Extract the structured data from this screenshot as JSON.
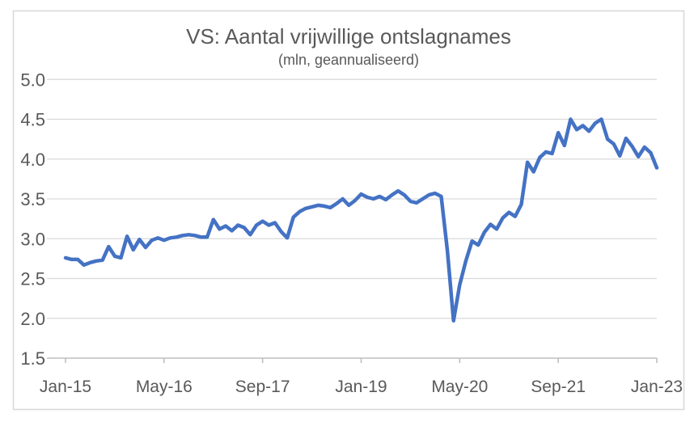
{
  "chart_data": {
    "type": "line",
    "title": "VS: Aantal vrijwillige ontslagnames",
    "subtitle": "(mln, geannualiseerd)",
    "x_unit": "month",
    "x_range_label": "Jan-2015 t/m Jan-2023",
    "x_tick_labels": [
      "Jan-15",
      "May-16",
      "Sep-17",
      "Jan-19",
      "May-20",
      "Sep-21",
      "Jan-23"
    ],
    "x_tick_month_indices": [
      0,
      16,
      32,
      48,
      64,
      80,
      96
    ],
    "y_tick_labels": [
      "1.5",
      "2.0",
      "2.5",
      "3.0",
      "3.5",
      "4.0",
      "4.5",
      "5.0"
    ],
    "ylim": [
      1.5,
      5.0
    ],
    "grid": true,
    "legend": "none",
    "line_color": "#4472C4",
    "grid_color": "#D9D9D9",
    "axis_color": "#BFBFBF",
    "border_color": "#D9D9D9",
    "text_color": "#595959",
    "values": [
      2.76,
      2.74,
      2.74,
      2.67,
      2.7,
      2.72,
      2.73,
      2.9,
      2.78,
      2.76,
      3.03,
      2.86,
      2.99,
      2.89,
      2.98,
      3.01,
      2.98,
      3.01,
      3.02,
      3.04,
      3.05,
      3.04,
      3.02,
      3.02,
      3.24,
      3.12,
      3.16,
      3.1,
      3.17,
      3.14,
      3.05,
      3.17,
      3.22,
      3.17,
      3.2,
      3.09,
      3.01,
      3.27,
      3.34,
      3.38,
      3.4,
      3.42,
      3.41,
      3.39,
      3.44,
      3.5,
      3.42,
      3.48,
      3.56,
      3.52,
      3.5,
      3.53,
      3.49,
      3.55,
      3.6,
      3.55,
      3.47,
      3.45,
      3.5,
      3.55,
      3.57,
      3.53,
      2.85,
      1.97,
      2.42,
      2.72,
      2.97,
      2.92,
      3.08,
      3.18,
      3.12,
      3.26,
      3.33,
      3.28,
      3.43,
      3.96,
      3.84,
      4.02,
      4.09,
      4.07,
      4.33,
      4.17,
      4.5,
      4.37,
      4.42,
      4.35,
      4.45,
      4.5,
      4.25,
      4.19,
      4.04,
      4.26,
      4.16,
      4.03,
      4.15,
      4.08,
      3.89
    ]
  }
}
